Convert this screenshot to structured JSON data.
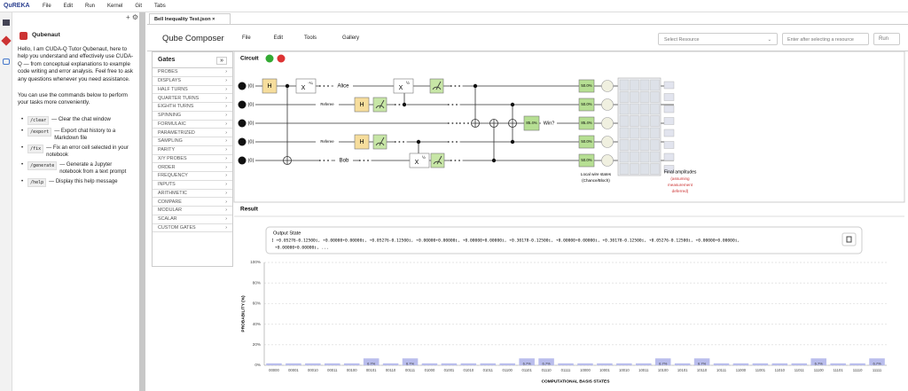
{
  "menu": {
    "logo": "QuREKA",
    "items": [
      "File",
      "Edit",
      "Run",
      "Kernel",
      "Git",
      "Tabs"
    ]
  },
  "chat": {
    "name": "Qubenaut",
    "intro": "Hello, I am CUDA-Q Tutor Qubenaut, here to help you understand and effectively use CUDA-Q — from conceptual explanations to example code writing and error analysis. Feel free to ask any questions whenever you need assistance.",
    "commands_intro": "You can use the commands below to perform your tasks more conveniently.",
    "commands": [
      {
        "command": "/clear",
        "description": "— Clear the chat window"
      },
      {
        "command": "/export",
        "description": "— Export chat history to a Markdown file"
      },
      {
        "command": "/fix",
        "description": "— Fix an error cell selected in your notebook"
      },
      {
        "command": "/generate",
        "description": "— Generate a Jupyter notebook from a text prompt"
      },
      {
        "command": "/help",
        "description": "— Display this help message"
      }
    ]
  },
  "tab": {
    "title": "Bell Inequality Test.json"
  },
  "composer": {
    "title": "Qube Composer",
    "menu": [
      "File",
      "Edit",
      "Tools",
      "Gallery"
    ],
    "resource_placeholder": "Select Resource",
    "input_placeholder": "Enter after selecting a resource",
    "run": "Run"
  },
  "gates": {
    "title": "Gates",
    "categories": [
      "PROBES",
      "DISPLAYS",
      "HALF TURNS",
      "QUARTER TURNS",
      "EIGHTH TURNS",
      "SPINNING",
      "FORMULAIC",
      "PARAMETRIZED",
      "SAMPLING",
      "PARITY",
      "X/Y PROBES",
      "ORDER",
      "FREQUENCY",
      "INPUTS",
      "ARITHMETIC",
      "COMPARE",
      "MODULAR",
      "SCALAR",
      "CUSTOM GATES"
    ]
  },
  "circuit": {
    "title": "Circuit",
    "input": "|0⟩",
    "hadamard": "H",
    "x_gate": "X",
    "quarter": "-¼",
    "half": "½",
    "alice": "Alice",
    "bob": "Bob",
    "referee": "Referee",
    "win_chance": "85.4%",
    "win": "Win?",
    "wire_states": [
      "50.0%",
      "50.0%",
      "85.4%",
      "50.0%",
      "50.0%"
    ],
    "local_caption": [
      "Local wire states",
      "(Chance/Bloch)"
    ],
    "final_title": "Final amplitudes",
    "final_note": [
      "(assuming",
      "measurement",
      "deferred)"
    ]
  },
  "result": {
    "title": "Result",
    "output_title": "Output State",
    "output_lines": [
      "[ +0.05276-0.12500i, +0.00000+0.00000i, +0.05276-0.12500i, +0.00000+0.00000i, +0.00000+0.00000i, +0.30178-0.12500i, +0.00000+0.00000i, +0.30178-0.12500i, +0.05276-0.12500i, +0.00000+0.00000i,",
      "+0.00000+0.00000i, ..."
    ]
  },
  "chart_data": {
    "type": "bar",
    "y_label": "PROBABILITY (%)",
    "x_label": "COMPUTATIONAL BASIS STATES",
    "color": "#b9bdec",
    "categories": [
      "00000",
      "00001",
      "00010",
      "00011",
      "00100",
      "00101",
      "00110",
      "00111",
      "01000",
      "01001",
      "01010",
      "01011",
      "01100",
      "01101",
      "01110",
      "01111",
      "10000",
      "10001",
      "10010",
      "10011",
      "10100",
      "10101",
      "10110",
      "10111",
      "11000",
      "11001",
      "11010",
      "11011",
      "11100",
      "11101",
      "11110",
      "11111"
    ],
    "values": [
      1.9,
      1.9,
      1.9,
      1.9,
      1.9,
      6.7,
      1.9,
      6.7,
      1.9,
      1.9,
      1.9,
      1.9,
      1.9,
      6.7,
      6.7,
      1.9,
      1.9,
      1.9,
      1.9,
      1.9,
      6.7,
      1.9,
      6.7,
      1.9,
      1.9,
      1.9,
      1.9,
      1.9,
      6.7,
      1.9,
      1.9,
      6.7
    ],
    "value_labels": [
      null,
      null,
      null,
      null,
      null,
      "6.7%",
      null,
      "6.7%",
      null,
      null,
      null,
      null,
      null,
      "6.7%",
      "6.7%",
      null,
      null,
      null,
      null,
      null,
      "6.7%",
      null,
      "6.7%",
      null,
      null,
      null,
      null,
      null,
      "6.7%",
      null,
      null,
      "6.7%"
    ],
    "ylim": [
      0,
      100
    ],
    "yticks": [
      {
        "value": 0,
        "label": "0%"
      },
      {
        "value": 20,
        "label": "20%"
      },
      {
        "value": 40,
        "label": "40%"
      },
      {
        "value": 60,
        "label": "60%"
      },
      {
        "value": 80,
        "label": "80%"
      },
      {
        "value": 100,
        "label": "100%"
      }
    ],
    "grid": true
  }
}
